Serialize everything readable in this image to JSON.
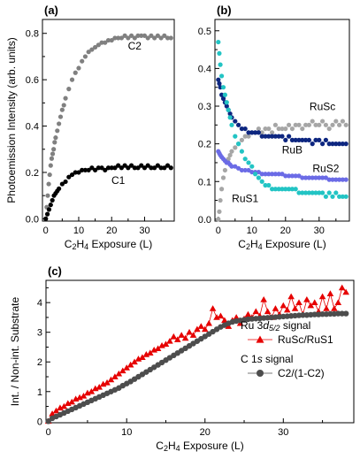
{
  "chart_data": [
    {
      "panel_label": "(a)",
      "type": "scatter",
      "xlabel": "C2H4 Exposure (L)",
      "ylabel": "Photoemission Intensity (arb. units)",
      "xlim": [
        -1,
        39
      ],
      "ylim": [
        -0.01,
        0.86
      ],
      "xticks": [
        0,
        10,
        20,
        30
      ],
      "xtick_labels": [
        "0",
        "10",
        "20",
        "30"
      ],
      "yticks": [
        0.0,
        0.2,
        0.4,
        0.6,
        0.8
      ],
      "ytick_labels": [
        "0.0",
        "0.2",
        "0.4",
        "0.6",
        "0.8"
      ],
      "series": [
        {
          "name": "C2",
          "color": "#808080",
          "label_at": [
            27,
            0.73
          ],
          "x": [
            0,
            0.3,
            0.6,
            0.9,
            1.2,
            1.5,
            1.8,
            2.1,
            2.4,
            2.7,
            3,
            3.5,
            4,
            4.5,
            5,
            5.5,
            6,
            7,
            8,
            9,
            10,
            11,
            12,
            13,
            14,
            15,
            16,
            17,
            18,
            19,
            20,
            21,
            22,
            23,
            24,
            25,
            26,
            27,
            28,
            29,
            30,
            31,
            32,
            33,
            34,
            35,
            36,
            37,
            38
          ],
          "y": [
            0,
            0.05,
            0.1,
            0.15,
            0.19,
            0.23,
            0.26,
            0.28,
            0.3,
            0.33,
            0.35,
            0.38,
            0.41,
            0.44,
            0.47,
            0.49,
            0.52,
            0.56,
            0.6,
            0.63,
            0.65,
            0.68,
            0.7,
            0.72,
            0.73,
            0.74,
            0.75,
            0.76,
            0.76,
            0.77,
            0.77,
            0.78,
            0.78,
            0.78,
            0.79,
            0.78,
            0.79,
            0.78,
            0.79,
            0.79,
            0.79,
            0.78,
            0.79,
            0.78,
            0.79,
            0.78,
            0.79,
            0.78,
            0.78
          ]
        },
        {
          "name": "C1",
          "color": "#000000",
          "label_at": [
            22,
            0.15
          ],
          "x": [
            0,
            0.5,
            1,
            1.5,
            2,
            2.5,
            3,
            3.5,
            4,
            5,
            6,
            7,
            8,
            9,
            10,
            11,
            12,
            13,
            14,
            15,
            16,
            17,
            18,
            19,
            20,
            21,
            22,
            23,
            24,
            25,
            26,
            27,
            28,
            29,
            30,
            31,
            32,
            33,
            34,
            35,
            36,
            37,
            38
          ],
          "y": [
            0,
            0.02,
            0.04,
            0.06,
            0.08,
            0.1,
            0.11,
            0.12,
            0.13,
            0.15,
            0.16,
            0.18,
            0.19,
            0.2,
            0.2,
            0.21,
            0.21,
            0.21,
            0.22,
            0.21,
            0.22,
            0.22,
            0.21,
            0.22,
            0.22,
            0.22,
            0.23,
            0.22,
            0.23,
            0.22,
            0.23,
            0.22,
            0.22,
            0.23,
            0.22,
            0.23,
            0.22,
            0.22,
            0.23,
            0.22,
            0.22,
            0.23,
            0.22
          ]
        }
      ]
    },
    {
      "panel_label": "(b)",
      "type": "scatter",
      "xlabel": "C2H4 Exposure (L)",
      "ylabel": "",
      "xlim": [
        -1,
        39
      ],
      "ylim": [
        -0.005,
        0.53
      ],
      "xticks": [
        0,
        10,
        20,
        30
      ],
      "xtick_labels": [
        "0",
        "10",
        "20",
        "30"
      ],
      "yticks": [
        0.0,
        0.1,
        0.2,
        0.3,
        0.4,
        0.5
      ],
      "ytick_labels": [
        "0.0",
        "0.1",
        "0.2",
        "0.3",
        "0.4",
        "0.5"
      ],
      "series": [
        {
          "name": "RuSc",
          "color": "#a6a6a6",
          "label_at": [
            31,
            0.29
          ],
          "x": [
            0,
            0.3,
            0.6,
            1,
            1.5,
            2,
            2.5,
            3,
            3.5,
            4,
            5,
            6,
            7,
            8,
            9,
            10,
            11,
            12,
            13,
            14,
            15,
            16,
            17,
            18,
            19,
            20,
            21,
            22,
            23,
            24,
            25,
            26,
            27,
            28,
            29,
            30,
            31,
            32,
            33,
            34,
            35,
            36,
            37,
            38
          ],
          "y": [
            0,
            0.02,
            0.05,
            0.08,
            0.11,
            0.13,
            0.15,
            0.16,
            0.17,
            0.18,
            0.19,
            0.2,
            0.21,
            0.22,
            0.22,
            0.23,
            0.23,
            0.24,
            0.23,
            0.24,
            0.24,
            0.23,
            0.25,
            0.24,
            0.24,
            0.24,
            0.25,
            0.24,
            0.25,
            0.25,
            0.24,
            0.25,
            0.25,
            0.26,
            0.25,
            0.25,
            0.26,
            0.25,
            0.24,
            0.25,
            0.26,
            0.25,
            0.26,
            0.25
          ]
        },
        {
          "name": "RuB",
          "color": "#0d2680",
          "label_at": [
            22,
            0.175
          ],
          "x": [
            0,
            0.3,
            0.6,
            1,
            1.5,
            2,
            2.5,
            3,
            3.5,
            4,
            5,
            6,
            7,
            8,
            9,
            10,
            11,
            12,
            13,
            14,
            15,
            16,
            17,
            18,
            19,
            20,
            21,
            22,
            23,
            24,
            25,
            26,
            27,
            28,
            29,
            30,
            31,
            32,
            33,
            34,
            35,
            36,
            37,
            38
          ],
          "y": [
            0.37,
            0.36,
            0.35,
            0.33,
            0.32,
            0.31,
            0.3,
            0.29,
            0.28,
            0.27,
            0.26,
            0.25,
            0.24,
            0.24,
            0.23,
            0.23,
            0.23,
            0.23,
            0.22,
            0.22,
            0.22,
            0.22,
            0.22,
            0.22,
            0.22,
            0.21,
            0.22,
            0.21,
            0.21,
            0.21,
            0.21,
            0.21,
            0.21,
            0.2,
            0.21,
            0.21,
            0.2,
            0.21,
            0.2,
            0.2,
            0.2,
            0.2,
            0.2,
            0.2
          ]
        },
        {
          "name": "RuS2",
          "color": "#6b6be6",
          "label_at": [
            32,
            0.125
          ],
          "x": [
            0,
            0.3,
            0.6,
            1,
            1.5,
            2,
            2.5,
            3,
            3.5,
            4,
            5,
            6,
            7,
            8,
            9,
            10,
            11,
            12,
            13,
            14,
            15,
            16,
            17,
            18,
            19,
            20,
            21,
            22,
            23,
            24,
            25,
            26,
            27,
            28,
            29,
            30,
            31,
            32,
            33,
            34,
            35,
            36,
            37,
            38
          ],
          "y": [
            0.18,
            0.175,
            0.17,
            0.165,
            0.16,
            0.155,
            0.15,
            0.15,
            0.145,
            0.14,
            0.14,
            0.135,
            0.13,
            0.13,
            0.13,
            0.125,
            0.125,
            0.125,
            0.12,
            0.12,
            0.12,
            0.12,
            0.12,
            0.12,
            0.12,
            0.115,
            0.115,
            0.115,
            0.115,
            0.115,
            0.11,
            0.11,
            0.11,
            0.11,
            0.11,
            0.11,
            0.11,
            0.11,
            0.105,
            0.105,
            0.105,
            0.105,
            0.105,
            0.105
          ]
        },
        {
          "name": "RuS1",
          "color": "#22c4c4",
          "label_at": [
            8,
            0.045
          ],
          "x": [
            0,
            0.3,
            0.6,
            1,
            1.5,
            2,
            2.5,
            3,
            3.5,
            4,
            5,
            6,
            7,
            8,
            9,
            10,
            11,
            12,
            13,
            14,
            15,
            16,
            17,
            18,
            19,
            20,
            21,
            22,
            23,
            24,
            25,
            26,
            27,
            28,
            29,
            30,
            31,
            32,
            33,
            34,
            35,
            36,
            37,
            38
          ],
          "y": [
            0.47,
            0.44,
            0.41,
            0.38,
            0.35,
            0.33,
            0.31,
            0.29,
            0.27,
            0.25,
            0.22,
            0.2,
            0.18,
            0.16,
            0.15,
            0.14,
            0.12,
            0.11,
            0.1,
            0.09,
            0.09,
            0.08,
            0.08,
            0.08,
            0.08,
            0.08,
            0.08,
            0.08,
            0.08,
            0.07,
            0.07,
            0.07,
            0.07,
            0.07,
            0.07,
            0.07,
            0.07,
            0.06,
            0.07,
            0.06,
            0.07,
            0.06,
            0.06,
            0.06
          ]
        }
      ]
    },
    {
      "panel_label": "(c)",
      "type": "line",
      "xlabel": "C2H4 Exposure (L)",
      "ylabel": "Int. / Non-int. Substrate",
      "xlim": [
        -0.3,
        39
      ],
      "ylim": [
        -0.05,
        4.75
      ],
      "xticks": [
        0,
        10,
        20,
        30
      ],
      "xtick_labels": [
        "0",
        "10",
        "20",
        "30"
      ],
      "yticks": [
        0,
        1,
        2,
        3,
        4
      ],
      "ytick_labels": [
        "0",
        "1",
        "2",
        "3",
        "4"
      ],
      "legend_placement": "bottom-right",
      "legend_groups": [
        {
          "title_main": "Ru 3",
          "title_italic": "d",
          "title_sub": "5/2",
          "title_end": " signal",
          "entry": "RuSc/RuS1"
        },
        {
          "title_main": "C 1",
          "title_italic": "s",
          "title_sub": "",
          "title_end": " signal",
          "entry": "C2/(1-C2)"
        }
      ],
      "series": [
        {
          "name": "RuSc/RuS1",
          "color": "#e60000",
          "marker": "triangle",
          "x": [
            0,
            0.5,
            1,
            1.5,
            2,
            2.5,
            3,
            3.5,
            4,
            4.5,
            5,
            5.5,
            6,
            6.5,
            7,
            7.5,
            8,
            8.5,
            9,
            9.5,
            10,
            10.5,
            11,
            11.5,
            12,
            12.5,
            13,
            13.5,
            14,
            14.5,
            15,
            15.5,
            16,
            16.5,
            17,
            17.5,
            18,
            18.5,
            19,
            19.5,
            20,
            20.5,
            21,
            21.5,
            22,
            22.5,
            23,
            23.5,
            24,
            24.5,
            25,
            25.5,
            26,
            26.5,
            27,
            27.5,
            28,
            28.5,
            29,
            29.5,
            30,
            30.5,
            31,
            31.5,
            32,
            32.5,
            33,
            33.5,
            34,
            34.5,
            35,
            35.5,
            36,
            36.5,
            37,
            37.5,
            38
          ],
          "y": [
            0,
            0.25,
            0.35,
            0.45,
            0.5,
            0.6,
            0.65,
            0.75,
            0.8,
            0.85,
            0.95,
            1.0,
            1.1,
            1.15,
            1.25,
            1.3,
            1.4,
            1.5,
            1.6,
            1.7,
            1.8,
            1.9,
            2.0,
            2.1,
            2.15,
            2.25,
            2.3,
            2.4,
            2.45,
            2.55,
            2.6,
            2.7,
            2.85,
            2.75,
            2.9,
            2.8,
            3.0,
            2.9,
            3.1,
            3.2,
            3.1,
            3.3,
            3.8,
            3.5,
            3.55,
            3.4,
            3.2,
            3.4,
            3.5,
            3.3,
            3.45,
            3.6,
            3.5,
            3.7,
            3.55,
            4.1,
            3.7,
            3.5,
            3.8,
            3.6,
            3.9,
            3.75,
            4.2,
            3.8,
            4.0,
            3.6,
            4.1,
            3.9,
            4.0,
            3.7,
            4.2,
            3.8,
            4.3,
            3.8,
            4.0,
            4.5,
            4.35
          ]
        },
        {
          "name": "C2/(1-C2)",
          "color": "#4d4d4d",
          "marker": "circle",
          "x": [
            0,
            0.5,
            1,
            1.5,
            2,
            2.5,
            3,
            3.5,
            4,
            4.5,
            5,
            5.5,
            6,
            6.5,
            7,
            7.5,
            8,
            8.5,
            9,
            9.5,
            10,
            10.5,
            11,
            11.5,
            12,
            12.5,
            13,
            13.5,
            14,
            14.5,
            15,
            15.5,
            16,
            16.5,
            17,
            17.5,
            18,
            18.5,
            19,
            19.5,
            20,
            20.5,
            21,
            21.5,
            22,
            22.5,
            23,
            23.5,
            24,
            24.5,
            25,
            25.5,
            26,
            26.5,
            27,
            27.5,
            28,
            28.5,
            29,
            29.5,
            30,
            30.5,
            31,
            31.5,
            32,
            32.5,
            33,
            33.5,
            34,
            34.5,
            35,
            35.5,
            36,
            36.5,
            37,
            37.5,
            38
          ],
          "y": [
            0,
            0.1,
            0.16,
            0.22,
            0.28,
            0.34,
            0.4,
            0.46,
            0.52,
            0.58,
            0.64,
            0.7,
            0.76,
            0.82,
            0.88,
            0.94,
            1.0,
            1.06,
            1.12,
            1.2,
            1.27,
            1.34,
            1.42,
            1.5,
            1.58,
            1.66,
            1.74,
            1.82,
            1.9,
            1.98,
            2.06,
            2.14,
            2.22,
            2.3,
            2.38,
            2.46,
            2.54,
            2.62,
            2.7,
            2.78,
            2.86,
            2.94,
            3.02,
            3.1,
            3.18,
            3.24,
            3.3,
            3.35,
            3.38,
            3.4,
            3.42,
            3.44,
            3.45,
            3.46,
            3.47,
            3.48,
            3.49,
            3.5,
            3.51,
            3.52,
            3.53,
            3.54,
            3.55,
            3.56,
            3.57,
            3.58,
            3.58,
            3.59,
            3.6,
            3.6,
            3.61,
            3.61,
            3.62,
            3.62,
            3.63,
            3.63,
            3.63
          ]
        }
      ]
    }
  ]
}
